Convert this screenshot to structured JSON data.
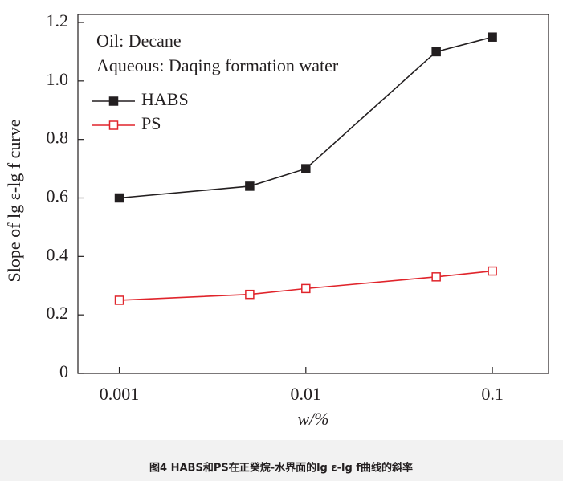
{
  "chart_data": {
    "type": "line",
    "log_x": true,
    "annotations": [
      "Oil: Decane",
      "Aqueous: Daqing formation water"
    ],
    "xlabel": "w/%",
    "ylabel": "Slope of lg ε-lg f curve",
    "caption": "图4  HABS和PS在正癸烷-水界面的lg ε-lg f曲线的斜率",
    "x": [
      0.001,
      0.005,
      0.01,
      0.05,
      0.1
    ],
    "series": [
      {
        "name": "HABS",
        "color": "#231f20",
        "marker": "filled-square",
        "values": [
          0.6,
          0.64,
          0.7,
          1.1,
          1.15
        ]
      },
      {
        "name": "PS",
        "color": "#e0242b",
        "marker": "open-square",
        "values": [
          0.25,
          0.27,
          0.29,
          0.33,
          0.35
        ]
      }
    ],
    "xlim": [
      0.0006,
      0.2
    ],
    "xticks": [
      0.001,
      0.01,
      0.1
    ],
    "ylim": [
      0,
      1.2
    ],
    "yticks": [
      0,
      0.2,
      0.4,
      0.6,
      0.8,
      {
        "value": 1,
        "label": "1.0"
      },
      1.2
    ],
    "legend": "upper-left"
  }
}
